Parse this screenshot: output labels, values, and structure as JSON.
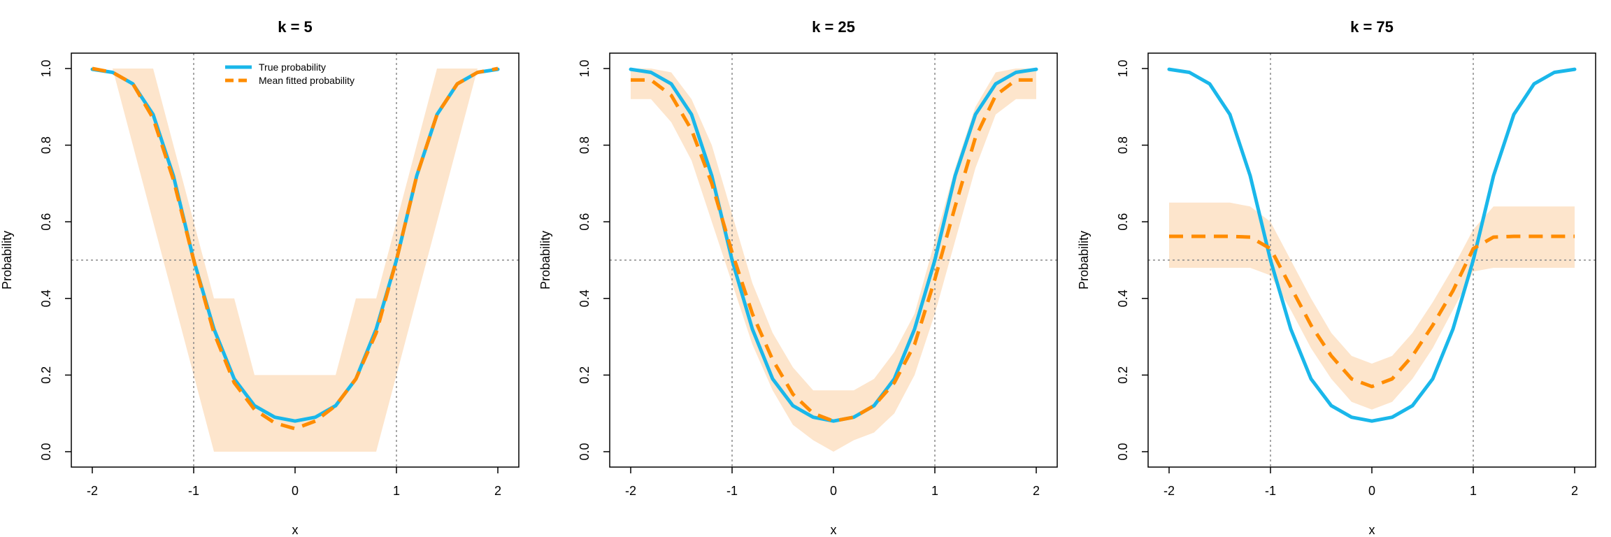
{
  "chart_data": [
    {
      "type": "line",
      "title": "k = 5",
      "xlabel": "x",
      "ylabel": "Probability",
      "xlim": [
        -2,
        2
      ],
      "ylim": [
        0,
        1
      ],
      "xticks": [
        "-2",
        "-1",
        "0",
        "1",
        "2"
      ],
      "yticks": [
        "0.0",
        "0.2",
        "0.4",
        "0.6",
        "0.8",
        "1.0"
      ],
      "reference_lines": {
        "vertical_x": [
          -1,
          1
        ],
        "horizontal_y": 0.5
      },
      "legend": {
        "position": "top-center",
        "entries": [
          "True probability",
          "Mean fitted probability"
        ]
      },
      "series": [
        {
          "name": "True probability",
          "style": "solid",
          "color": "#1ab7ea",
          "x": [
            -2.0,
            -1.8,
            -1.6,
            -1.4,
            -1.2,
            -1.0,
            -0.8,
            -0.6,
            -0.4,
            -0.2,
            0.0,
            0.2,
            0.4,
            0.6,
            0.8,
            1.0,
            1.2,
            1.4,
            1.6,
            1.8,
            2.0
          ],
          "y": [
            0.998,
            0.99,
            0.96,
            0.88,
            0.72,
            0.5,
            0.32,
            0.19,
            0.12,
            0.09,
            0.08,
            0.09,
            0.12,
            0.19,
            0.32,
            0.5,
            0.72,
            0.88,
            0.96,
            0.99,
            0.998
          ]
        },
        {
          "name": "Mean fitted probability",
          "style": "dashed",
          "color": "#ff8c00",
          "x": [
            -2.0,
            -1.8,
            -1.6,
            -1.4,
            -1.2,
            -1.0,
            -0.8,
            -0.6,
            -0.4,
            -0.2,
            0.0,
            0.2,
            0.4,
            0.6,
            0.8,
            1.0,
            1.2,
            1.4,
            1.6,
            1.8,
            2.0
          ],
          "y": [
            1.0,
            0.99,
            0.96,
            0.87,
            0.71,
            0.5,
            0.31,
            0.18,
            0.11,
            0.075,
            0.06,
            0.08,
            0.12,
            0.19,
            0.31,
            0.5,
            0.72,
            0.88,
            0.96,
            0.99,
            1.0
          ]
        },
        {
          "name": "",
          "style": "band",
          "color": "#fde5cc",
          "x": [
            -2.0,
            -1.8,
            -1.6,
            -1.4,
            -1.2,
            -1.0,
            -0.8,
            -0.6,
            -0.4,
            -0.2,
            0.0,
            0.2,
            0.4,
            0.6,
            0.8,
            1.0,
            1.2,
            1.4,
            1.6,
            1.8,
            2.0
          ],
          "lower": [
            1.0,
            1.0,
            0.8,
            0.6,
            0.4,
            0.2,
            0.0,
            0.0,
            0.0,
            0.0,
            0.0,
            0.0,
            0.0,
            0.0,
            0.0,
            0.2,
            0.4,
            0.6,
            0.8,
            1.0,
            1.0
          ],
          "upper": [
            1.0,
            1.0,
            1.0,
            1.0,
            0.8,
            0.6,
            0.4,
            0.4,
            0.2,
            0.2,
            0.2,
            0.2,
            0.2,
            0.4,
            0.4,
            0.6,
            0.8,
            1.0,
            1.0,
            1.0,
            1.0
          ]
        }
      ]
    },
    {
      "type": "line",
      "title": "k = 25",
      "xlabel": "x",
      "ylabel": "Probability",
      "xlim": [
        -2,
        2
      ],
      "ylim": [
        0,
        1
      ],
      "xticks": [
        "-2",
        "-1",
        "0",
        "1",
        "2"
      ],
      "yticks": [
        "0.0",
        "0.2",
        "0.4",
        "0.6",
        "0.8",
        "1.0"
      ],
      "reference_lines": {
        "vertical_x": [
          -1,
          1
        ],
        "horizontal_y": 0.5
      },
      "series": [
        {
          "name": "True probability",
          "style": "solid",
          "color": "#1ab7ea",
          "x": [
            -2.0,
            -1.8,
            -1.6,
            -1.4,
            -1.2,
            -1.0,
            -0.8,
            -0.6,
            -0.4,
            -0.2,
            0.0,
            0.2,
            0.4,
            0.6,
            0.8,
            1.0,
            1.2,
            1.4,
            1.6,
            1.8,
            2.0
          ],
          "y": [
            0.998,
            0.99,
            0.96,
            0.88,
            0.72,
            0.5,
            0.32,
            0.19,
            0.12,
            0.09,
            0.08,
            0.09,
            0.12,
            0.19,
            0.32,
            0.5,
            0.72,
            0.88,
            0.96,
            0.99,
            0.998
          ]
        },
        {
          "name": "Mean fitted probability",
          "style": "dashed",
          "color": "#ff8c00",
          "x": [
            -2.0,
            -1.8,
            -1.6,
            -1.4,
            -1.2,
            -1.0,
            -0.8,
            -0.6,
            -0.4,
            -0.2,
            0.0,
            0.2,
            0.4,
            0.6,
            0.8,
            1.0,
            1.2,
            1.4,
            1.6,
            1.8,
            2.0
          ],
          "y": [
            0.97,
            0.97,
            0.93,
            0.84,
            0.7,
            0.52,
            0.36,
            0.24,
            0.15,
            0.1,
            0.08,
            0.09,
            0.12,
            0.18,
            0.28,
            0.45,
            0.64,
            0.82,
            0.93,
            0.97,
            0.97
          ]
        },
        {
          "name": "",
          "style": "band",
          "color": "#fde5cc",
          "x": [
            -2.0,
            -1.8,
            -1.6,
            -1.4,
            -1.2,
            -1.0,
            -0.8,
            -0.6,
            -0.4,
            -0.2,
            0.0,
            0.2,
            0.4,
            0.6,
            0.8,
            1.0,
            1.2,
            1.4,
            1.6,
            1.8,
            2.0
          ],
          "lower": [
            0.92,
            0.92,
            0.86,
            0.76,
            0.6,
            0.44,
            0.28,
            0.16,
            0.07,
            0.03,
            0.0,
            0.03,
            0.05,
            0.1,
            0.2,
            0.36,
            0.55,
            0.74,
            0.88,
            0.92,
            0.92
          ],
          "upper": [
            1.0,
            1.0,
            0.99,
            0.92,
            0.8,
            0.62,
            0.44,
            0.31,
            0.22,
            0.16,
            0.16,
            0.16,
            0.19,
            0.26,
            0.36,
            0.55,
            0.74,
            0.9,
            0.99,
            1.0,
            1.0
          ]
        }
      ]
    },
    {
      "type": "line",
      "title": "k = 75",
      "xlabel": "x",
      "ylabel": "Probability",
      "xlim": [
        -2,
        2
      ],
      "ylim": [
        0,
        1
      ],
      "xticks": [
        "-2",
        "-1",
        "0",
        "1",
        "2"
      ],
      "yticks": [
        "0.0",
        "0.2",
        "0.4",
        "0.6",
        "0.8",
        "1.0"
      ],
      "reference_lines": {
        "vertical_x": [
          -1,
          1
        ],
        "horizontal_y": 0.5
      },
      "series": [
        {
          "name": "True probability",
          "style": "solid",
          "color": "#1ab7ea",
          "x": [
            -2.0,
            -1.8,
            -1.6,
            -1.4,
            -1.2,
            -1.0,
            -0.8,
            -0.6,
            -0.4,
            -0.2,
            0.0,
            0.2,
            0.4,
            0.6,
            0.8,
            1.0,
            1.2,
            1.4,
            1.6,
            1.8,
            2.0
          ],
          "y": [
            0.998,
            0.99,
            0.96,
            0.88,
            0.72,
            0.5,
            0.32,
            0.19,
            0.12,
            0.09,
            0.08,
            0.09,
            0.12,
            0.19,
            0.32,
            0.5,
            0.72,
            0.88,
            0.96,
            0.99,
            0.998
          ]
        },
        {
          "name": "Mean fitted probability",
          "style": "dashed",
          "color": "#ff8c00",
          "x": [
            -2.0,
            -1.8,
            -1.6,
            -1.4,
            -1.2,
            -1.0,
            -0.8,
            -0.6,
            -0.4,
            -0.2,
            0.0,
            0.2,
            0.4,
            0.6,
            0.8,
            1.0,
            1.2,
            1.4,
            1.6,
            1.8,
            2.0
          ],
          "y": [
            0.562,
            0.562,
            0.562,
            0.562,
            0.56,
            0.53,
            0.43,
            0.33,
            0.25,
            0.19,
            0.17,
            0.19,
            0.25,
            0.33,
            0.42,
            0.53,
            0.56,
            0.562,
            0.562,
            0.562,
            0.562
          ]
        },
        {
          "name": "",
          "style": "band",
          "color": "#fde5cc",
          "x": [
            -2.0,
            -1.8,
            -1.6,
            -1.4,
            -1.2,
            -1.0,
            -0.8,
            -0.6,
            -0.4,
            -0.2,
            0.0,
            0.2,
            0.4,
            0.6,
            0.8,
            1.0,
            1.2,
            1.4,
            1.6,
            1.8,
            2.0
          ],
          "lower": [
            0.48,
            0.48,
            0.48,
            0.48,
            0.48,
            0.46,
            0.37,
            0.27,
            0.19,
            0.13,
            0.11,
            0.13,
            0.19,
            0.27,
            0.37,
            0.47,
            0.48,
            0.48,
            0.48,
            0.48,
            0.48
          ],
          "upper": [
            0.65,
            0.65,
            0.65,
            0.65,
            0.64,
            0.6,
            0.5,
            0.4,
            0.31,
            0.25,
            0.23,
            0.25,
            0.31,
            0.39,
            0.48,
            0.58,
            0.64,
            0.64,
            0.64,
            0.64,
            0.64
          ]
        }
      ]
    }
  ]
}
